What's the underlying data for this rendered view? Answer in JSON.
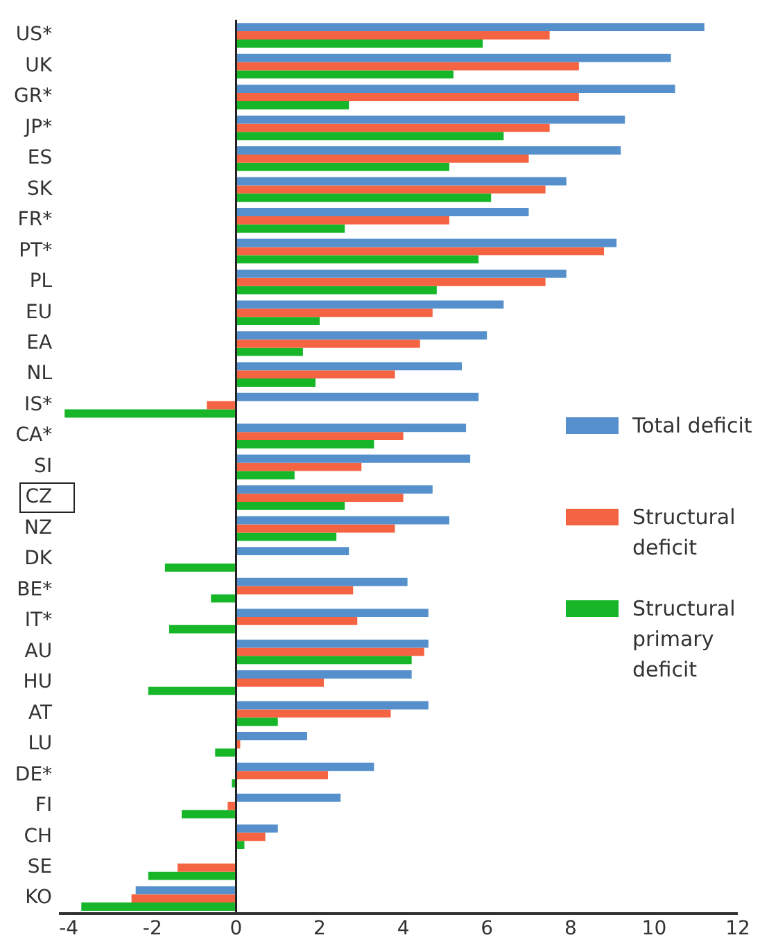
{
  "chart_data": {
    "type": "bar",
    "orientation": "horizontal",
    "categories": [
      "US*",
      "UK",
      "GR*",
      "JP*",
      "ES",
      "SK",
      "FR*",
      "PT*",
      "PL",
      "EU",
      "EA",
      "NL",
      "IS*",
      "CA*",
      "SI",
      "CZ",
      "NZ",
      "DK",
      "BE*",
      "IT*",
      "AU",
      "HU",
      "AT",
      "LU",
      "DE*",
      "FI",
      "CH",
      "SE",
      "KO"
    ],
    "series": [
      {
        "name": "Total deficit",
        "color": "#5590cc",
        "values": [
          11.2,
          10.4,
          10.5,
          9.3,
          9.2,
          7.9,
          7.0,
          9.1,
          7.9,
          6.4,
          6.0,
          5.4,
          5.8,
          5.5,
          5.6,
          4.7,
          5.1,
          2.7,
          4.1,
          4.6,
          4.6,
          4.2,
          4.6,
          1.7,
          3.3,
          2.5,
          1.0,
          0,
          -2.4
        ]
      },
      {
        "name": "Structural deficit",
        "color": "#f56442",
        "values": [
          7.5,
          8.2,
          8.2,
          7.5,
          7.0,
          7.4,
          5.1,
          8.8,
          7.4,
          4.7,
          4.4,
          3.8,
          -0.7,
          4.0,
          3.0,
          4.0,
          3.8,
          0,
          2.8,
          2.9,
          4.5,
          2.1,
          3.7,
          0.1,
          2.2,
          -0.2,
          0.7,
          -1.4,
          -2.5
        ]
      },
      {
        "name": "Structural primary deficit",
        "color": "#16b628",
        "values": [
          5.9,
          5.2,
          2.7,
          6.4,
          5.1,
          6.1,
          2.6,
          5.8,
          4.8,
          2.0,
          1.6,
          1.9,
          -4.1,
          3.3,
          1.4,
          2.6,
          2.4,
          -1.7,
          -0.6,
          -1.6,
          4.2,
          -2.1,
          1.0,
          -0.5,
          -0.1,
          -1.3,
          0.2,
          -2.1,
          -3.7
        ]
      }
    ],
    "xlim": [
      -4.2,
      12
    ],
    "xticks": [
      -4,
      -2,
      0,
      2,
      4,
      6,
      8,
      10,
      12
    ],
    "legend": "right"
  }
}
